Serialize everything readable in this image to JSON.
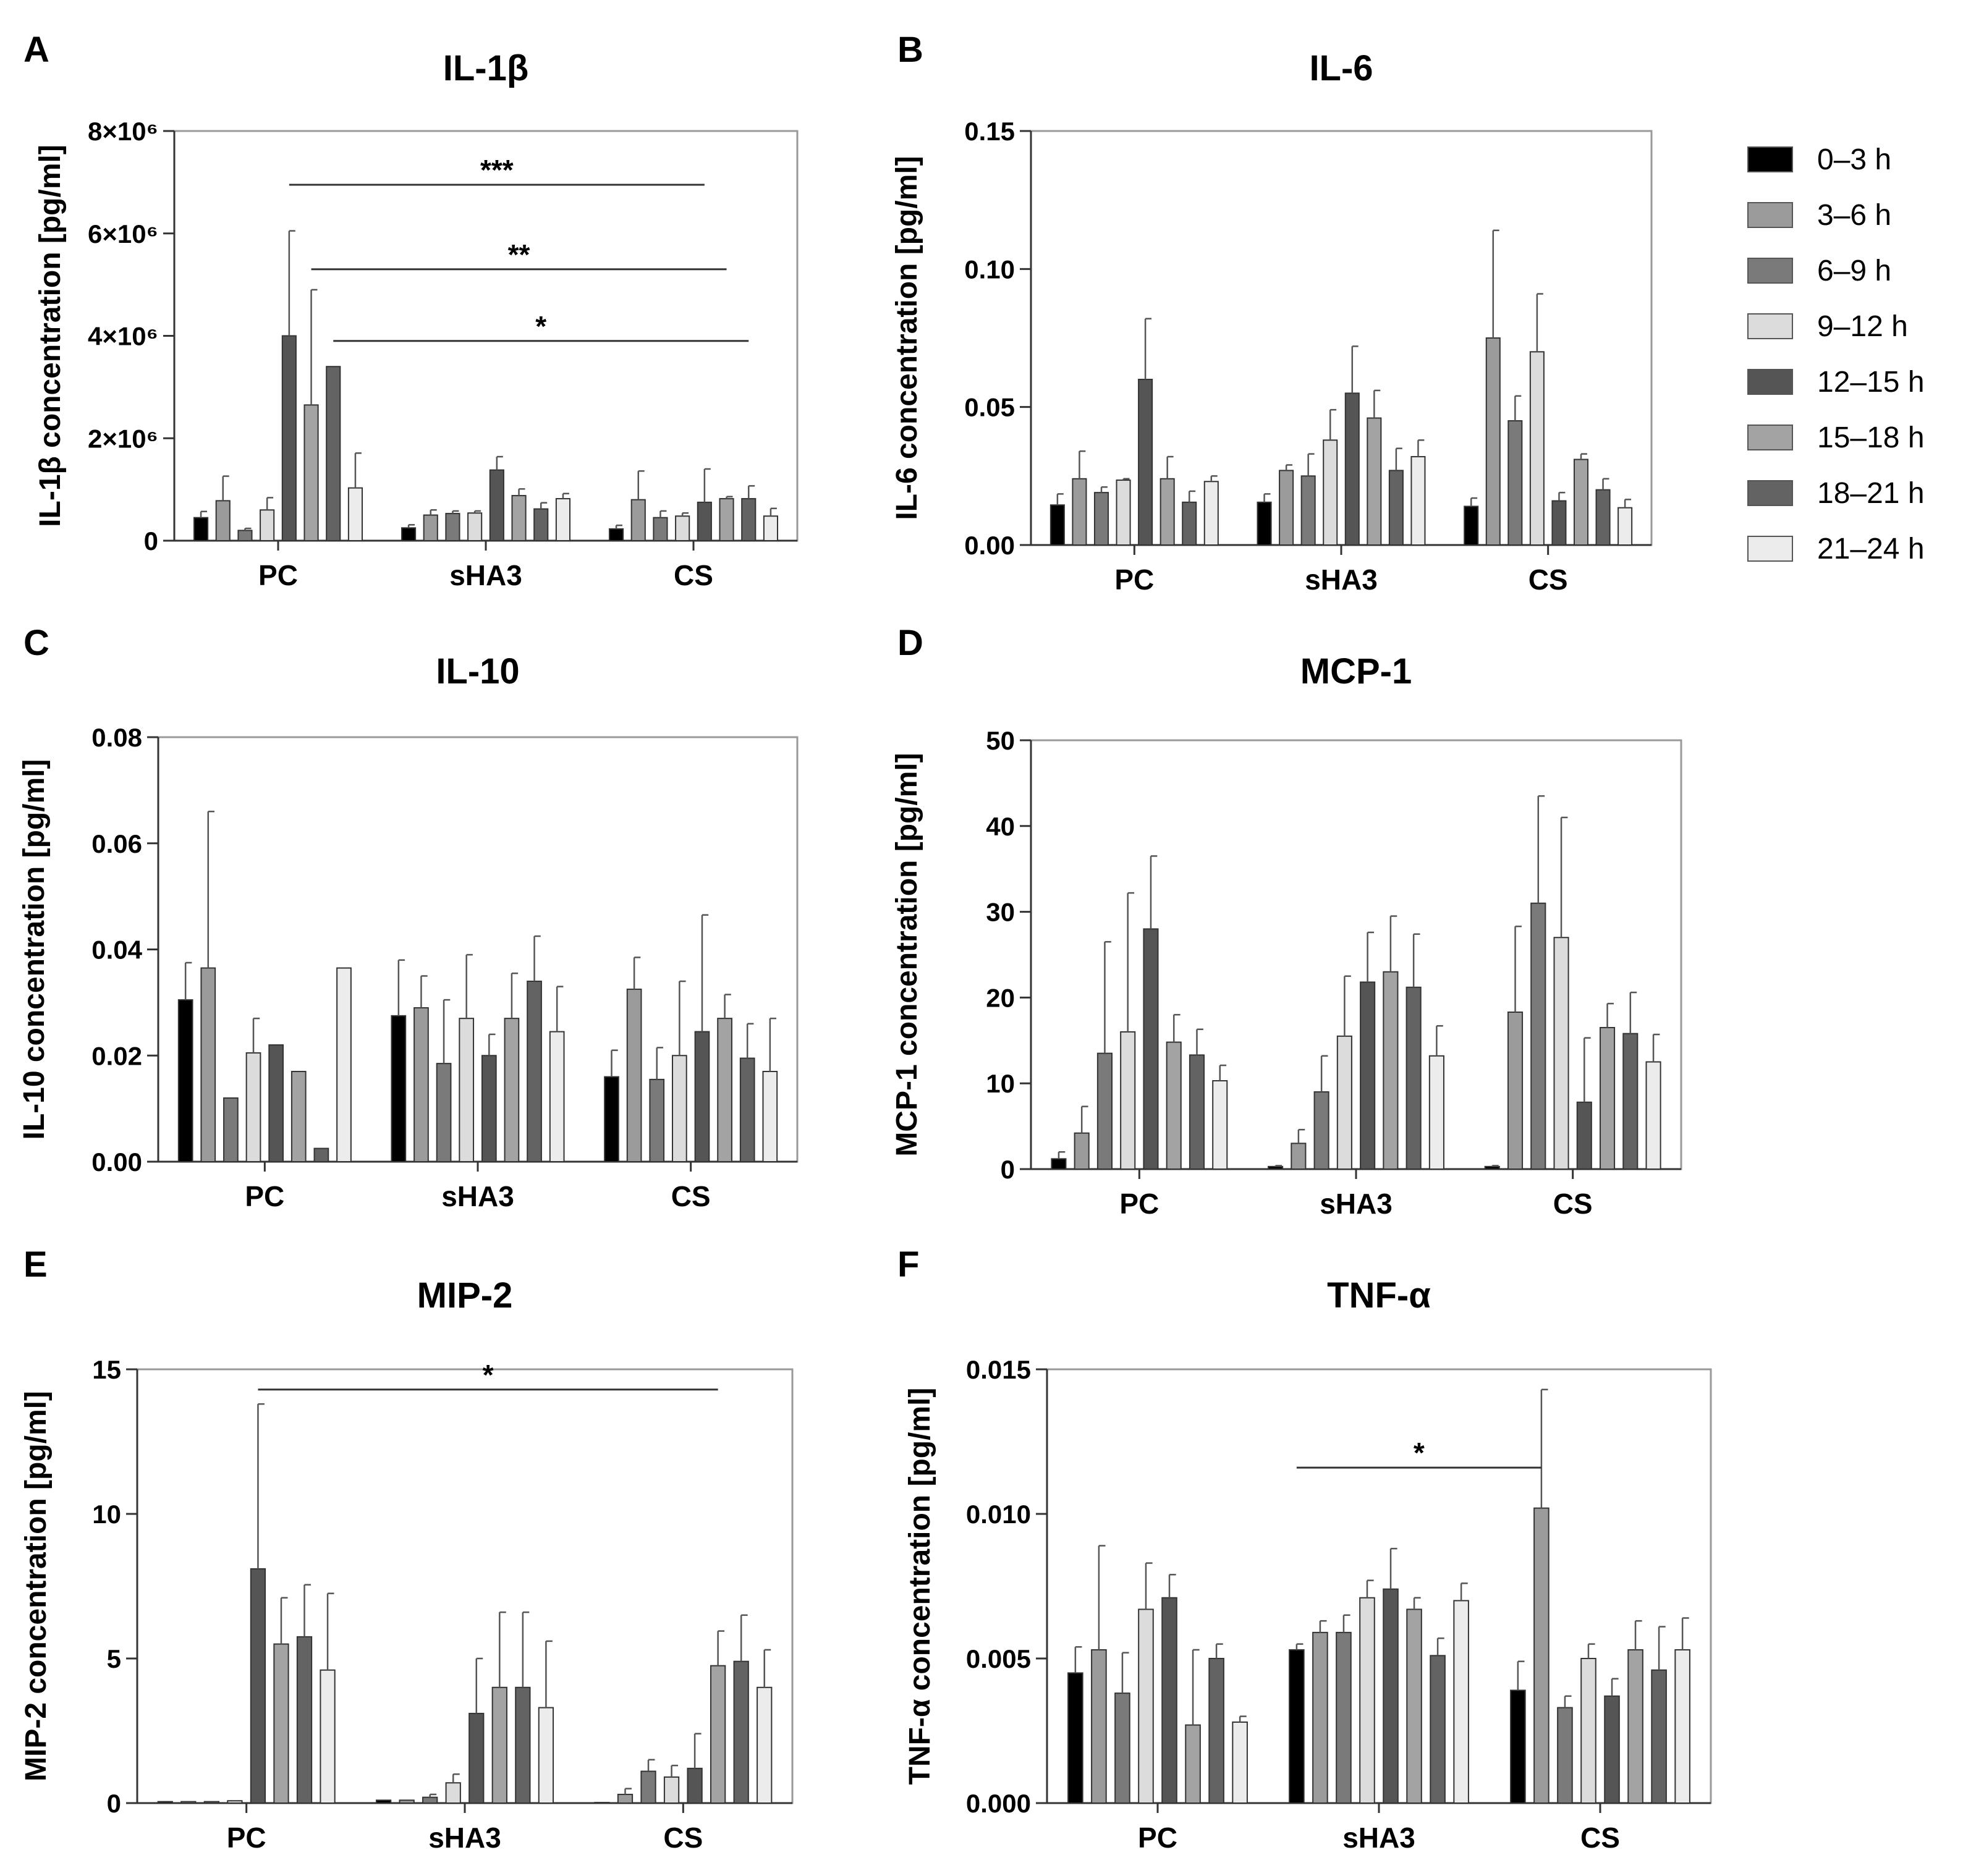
{
  "legend": {
    "entries": [
      "0–3 h",
      "3–6 h",
      "6–9 h",
      "9–12 h",
      "12–15 h",
      "15–18 h",
      "18–21 h",
      "21–24 h"
    ]
  },
  "series_colors": [
    "#000000",
    "#9b9b9b",
    "#7a7a7a",
    "#dcdcdc",
    "#555555",
    "#a3a3a3",
    "#636363",
    "#ececec"
  ],
  "chart_data": [
    {
      "panel": "A",
      "type": "bar",
      "title": "IL-1β",
      "ylabel": "IL-1β concentration [pg/ml]",
      "categories": [
        "PC",
        "sHA3",
        "CS"
      ],
      "ylim": [
        0,
        8000000
      ],
      "yticks": [
        0,
        2000000,
        4000000,
        6000000,
        8000000
      ],
      "ytick_labels": [
        "0",
        "2×10⁶",
        "4×10⁶",
        "6×10⁶",
        "8×10⁶"
      ],
      "series": [
        {
          "name": "0–3 h",
          "values": [
            450000,
            250000,
            230000
          ],
          "errors": [
            120000,
            60000,
            70000
          ]
        },
        {
          "name": "3–6 h",
          "values": [
            780000,
            500000,
            800000
          ],
          "errors": [
            480000,
            100000,
            560000
          ]
        },
        {
          "name": "6–9 h",
          "values": [
            200000,
            530000,
            450000
          ],
          "errors": [
            40000,
            50000,
            130000
          ]
        },
        {
          "name": "9–12 h",
          "values": [
            600000,
            540000,
            480000
          ],
          "errors": [
            240000,
            40000,
            60000
          ]
        },
        {
          "name": "12–15 h",
          "values": [
            4000000,
            1380000,
            750000
          ],
          "errors": [
            2050000,
            260000,
            650000
          ]
        },
        {
          "name": "15–18 h",
          "values": [
            2650000,
            880000,
            820000
          ],
          "errors": [
            2250000,
            130000,
            40000
          ]
        },
        {
          "name": "18–21 h",
          "values": [
            3400000,
            620000,
            820000
          ],
          "errors": [
            0,
            120000,
            250000
          ]
        },
        {
          "name": "21–24 h",
          "values": [
            1030000,
            820000,
            480000
          ],
          "errors": [
            680000,
            100000,
            150000
          ]
        }
      ],
      "significance": [
        {
          "label": "***",
          "from": [
            0,
            4
          ],
          "to": [
            2,
            4
          ],
          "y": 6950000
        },
        {
          "label": "**",
          "from": [
            0,
            5
          ],
          "to": [
            2,
            5
          ],
          "y": 5300000
        },
        {
          "label": "*",
          "from": [
            0,
            6
          ],
          "to": [
            2,
            6
          ],
          "y": 3900000
        }
      ]
    },
    {
      "panel": "B",
      "type": "bar",
      "title": "IL-6",
      "ylabel": "IL-6 concentration [pg/ml]",
      "categories": [
        "PC",
        "sHA3",
        "CS"
      ],
      "ylim": [
        0,
        0.15
      ],
      "yticks": [
        0,
        0.05,
        0.1,
        0.15
      ],
      "ytick_labels": [
        "0.00",
        "0.05",
        "0.10",
        "0.15"
      ],
      "series": [
        {
          "name": "0–3 h",
          "values": [
            0.0145,
            0.0155,
            0.014
          ],
          "errors": [
            0.004,
            0.003,
            0.003
          ]
        },
        {
          "name": "3–6 h",
          "values": [
            0.024,
            0.027,
            0.075
          ],
          "errors": [
            0.01,
            0.002,
            0.039
          ]
        },
        {
          "name": "6–9 h",
          "values": [
            0.019,
            0.025,
            0.045
          ],
          "errors": [
            0.002,
            0.008,
            0.009
          ]
        },
        {
          "name": "9–12 h",
          "values": [
            0.0235,
            0.038,
            0.07
          ],
          "errors": [
            0.0005,
            0.011,
            0.021
          ]
        },
        {
          "name": "12–15 h",
          "values": [
            0.06,
            0.055,
            0.016
          ],
          "errors": [
            0.022,
            0.017,
            0.003
          ]
        },
        {
          "name": "15–18 h",
          "values": [
            0.024,
            0.046,
            0.031
          ],
          "errors": [
            0.008,
            0.01,
            0.002
          ]
        },
        {
          "name": "18–21 h",
          "values": [
            0.0155,
            0.027,
            0.02
          ],
          "errors": [
            0.004,
            0.008,
            0.004
          ]
        },
        {
          "name": "21–24 h",
          "values": [
            0.023,
            0.032,
            0.0135
          ],
          "errors": [
            0.002,
            0.006,
            0.003
          ]
        }
      ],
      "significance": []
    },
    {
      "panel": "C",
      "type": "bar",
      "title": "IL-10",
      "ylabel": "IL-10 concentration [pg/ml]",
      "categories": [
        "PC",
        "sHA3",
        "CS"
      ],
      "ylim": [
        0,
        0.08
      ],
      "yticks": [
        0,
        0.02,
        0.04,
        0.06,
        0.08
      ],
      "ytick_labels": [
        "0.00",
        "0.02",
        "0.04",
        "0.06",
        "0.08"
      ],
      "series": [
        {
          "name": "0–3 h",
          "values": [
            0.0305,
            0.0275,
            0.016
          ],
          "errors": [
            0.007,
            0.0105,
            0.005
          ]
        },
        {
          "name": "3–6 h",
          "values": [
            0.0365,
            0.029,
            0.0325
          ],
          "errors": [
            0.0295,
            0.006,
            0.006
          ]
        },
        {
          "name": "6–9 h",
          "values": [
            0.012,
            0.0185,
            0.0155
          ],
          "errors": [
            0,
            0.012,
            0.006
          ]
        },
        {
          "name": "9–12 h",
          "values": [
            0.0205,
            0.027,
            0.02
          ],
          "errors": [
            0.0065,
            0.012,
            0.014
          ]
        },
        {
          "name": "12–15 h",
          "values": [
            0.022,
            0.02,
            0.0245
          ],
          "errors": [
            0,
            0.004,
            0.022
          ]
        },
        {
          "name": "15–18 h",
          "values": [
            0.017,
            0.027,
            0.027
          ],
          "errors": [
            0,
            0.0085,
            0.0045
          ]
        },
        {
          "name": "18–21 h",
          "values": [
            0.0025,
            0.034,
            0.0195
          ],
          "errors": [
            0,
            0.0085,
            0.0065
          ]
        },
        {
          "name": "21–24 h",
          "values": [
            0.0365,
            0.0245,
            0.017
          ],
          "errors": [
            0,
            0.0085,
            0.01
          ]
        }
      ],
      "significance": []
    },
    {
      "panel": "D",
      "type": "bar",
      "title": "MCP-1",
      "ylabel": "MCP-1 concentration [pg/ml]",
      "categories": [
        "PC",
        "sHA3",
        "CS"
      ],
      "ylim": [
        0,
        50
      ],
      "yticks": [
        0,
        10,
        20,
        30,
        40,
        50
      ],
      "ytick_labels": [
        "0",
        "10",
        "20",
        "30",
        "40",
        "50"
      ],
      "series": [
        {
          "name": "0–3 h",
          "values": [
            1.2,
            0.3,
            0.3
          ],
          "errors": [
            0.8,
            0.1,
            0.1
          ]
        },
        {
          "name": "3–6 h",
          "values": [
            4.2,
            3.0,
            18.3
          ],
          "errors": [
            3.1,
            1.6,
            10.0
          ]
        },
        {
          "name": "6–9 h",
          "values": [
            13.5,
            9.0,
            31.0
          ],
          "errors": [
            13.0,
            4.2,
            12.5
          ]
        },
        {
          "name": "9–12 h",
          "values": [
            16.0,
            15.5,
            27.0
          ],
          "errors": [
            16.2,
            7.0,
            14.0
          ]
        },
        {
          "name": "12–15 h",
          "values": [
            28.0,
            21.8,
            7.8
          ],
          "errors": [
            8.5,
            5.8,
            7.5
          ]
        },
        {
          "name": "15–18 h",
          "values": [
            14.8,
            23.0,
            16.5
          ],
          "errors": [
            3.2,
            6.5,
            2.8
          ]
        },
        {
          "name": "18–21 h",
          "values": [
            13.3,
            21.2,
            15.8
          ],
          "errors": [
            3.0,
            6.2,
            4.8
          ]
        },
        {
          "name": "21–24 h",
          "values": [
            10.3,
            13.2,
            12.5
          ],
          "errors": [
            1.8,
            3.5,
            3.2
          ]
        }
      ],
      "significance": []
    },
    {
      "panel": "E",
      "type": "bar",
      "title": "MIP-2",
      "ylabel": "MIP-2 concentration [pg/ml]",
      "categories": [
        "PC",
        "sHA3",
        "CS"
      ],
      "ylim": [
        0,
        15
      ],
      "yticks": [
        0,
        5,
        10,
        15
      ],
      "ytick_labels": [
        "0",
        "5",
        "10",
        "15"
      ],
      "series": [
        {
          "name": "0–3 h",
          "values": [
            0.05,
            0.1,
            0.02
          ],
          "errors": [
            0,
            0,
            0
          ]
        },
        {
          "name": "3–6 h",
          "values": [
            0.05,
            0.1,
            0.3
          ],
          "errors": [
            0,
            0,
            0.2
          ]
        },
        {
          "name": "6–9 h",
          "values": [
            0.05,
            0.2,
            1.1
          ],
          "errors": [
            0,
            0.1,
            0.4
          ]
        },
        {
          "name": "9–12 h",
          "values": [
            0.08,
            0.7,
            0.9
          ],
          "errors": [
            0,
            0.3,
            0.4
          ]
        },
        {
          "name": "12–15 h",
          "values": [
            8.1,
            3.1,
            1.2
          ],
          "errors": [
            5.7,
            1.9,
            1.2
          ]
        },
        {
          "name": "15–18 h",
          "values": [
            5.5,
            4.0,
            4.75
          ],
          "errors": [
            1.6,
            2.6,
            1.2
          ]
        },
        {
          "name": "18–21 h",
          "values": [
            5.75,
            4.0,
            4.9
          ],
          "errors": [
            1.8,
            2.6,
            1.6
          ]
        },
        {
          "name": "21–24 h",
          "values": [
            4.6,
            3.3,
            4.0
          ],
          "errors": [
            2.65,
            2.3,
            1.3
          ]
        }
      ],
      "significance": [
        {
          "label": "*",
          "from": [
            0,
            4
          ],
          "to": [
            2,
            5
          ],
          "y": 14.3
        }
      ]
    },
    {
      "panel": "F",
      "type": "bar",
      "title": "TNF-α",
      "ylabel": "TNF-α concentration [pg/ml]",
      "categories": [
        "PC",
        "sHA3",
        "CS"
      ],
      "ylim": [
        0,
        0.015
      ],
      "yticks": [
        0,
        0.005,
        0.01,
        0.015
      ],
      "ytick_labels": [
        "0.000",
        "0.005",
        "0.010",
        "0.015"
      ],
      "series": [
        {
          "name": "0–3 h",
          "values": [
            0.0045,
            0.0053,
            0.0039
          ],
          "errors": [
            0.0009,
            0.0002,
            0.001
          ]
        },
        {
          "name": "3–6 h",
          "values": [
            0.0053,
            0.0059,
            0.0102
          ],
          "errors": [
            0.0036,
            0.0004,
            0.0041
          ]
        },
        {
          "name": "6–9 h",
          "values": [
            0.0038,
            0.0059,
            0.0033
          ],
          "errors": [
            0.0014,
            0.0006,
            0.0004
          ]
        },
        {
          "name": "9–12 h",
          "values": [
            0.0067,
            0.0071,
            0.005
          ],
          "errors": [
            0.0016,
            0.0006,
            0.0005
          ]
        },
        {
          "name": "12–15 h",
          "values": [
            0.0071,
            0.0074,
            0.0037
          ],
          "errors": [
            0.0008,
            0.0014,
            0.0006
          ]
        },
        {
          "name": "15–18 h",
          "values": [
            0.0027,
            0.0067,
            0.0053
          ],
          "errors": [
            0.0026,
            0.0004,
            0.001
          ]
        },
        {
          "name": "18–21 h",
          "values": [
            0.005,
            0.0051,
            0.0046
          ],
          "errors": [
            0.0005,
            0.0006,
            0.0015
          ]
        },
        {
          "name": "21–24 h",
          "values": [
            0.0028,
            0.007,
            0.0053
          ],
          "errors": [
            0.0002,
            0.0006,
            0.0011
          ]
        }
      ],
      "significance": [
        {
          "label": "*",
          "from": [
            1,
            0
          ],
          "to": [
            2,
            1
          ],
          "y": 0.0116
        }
      ]
    }
  ]
}
